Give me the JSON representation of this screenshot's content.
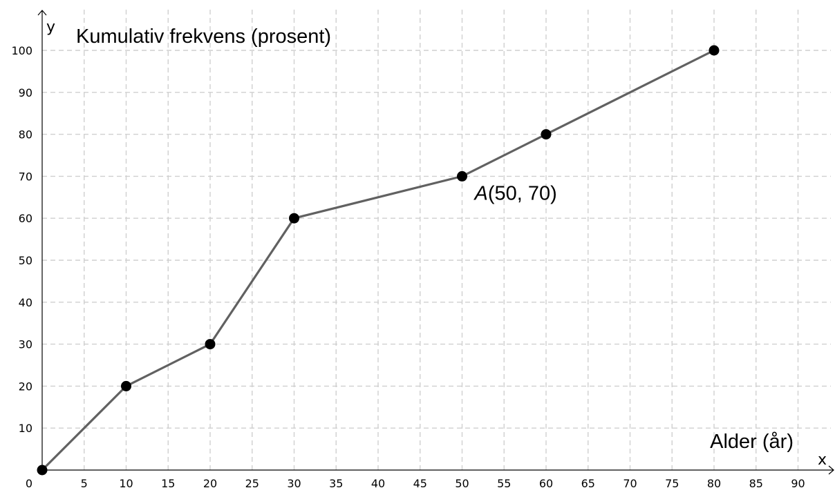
{
  "chart_data": {
    "type": "line",
    "ylabel": "Kumulativ frekvens (prosent)",
    "xlabel": "Alder (år)",
    "x_axis_name": "x",
    "y_axis_name": "y",
    "origin_label": "0",
    "xlim": [
      0,
      95
    ],
    "ylim": [
      0,
      105
    ],
    "x_ticks": [
      5,
      10,
      15,
      20,
      25,
      30,
      35,
      40,
      45,
      50,
      55,
      60,
      65,
      70,
      75,
      80,
      85,
      90
    ],
    "y_ticks": [
      10,
      20,
      30,
      40,
      50,
      60,
      70,
      80,
      90,
      100
    ],
    "grid": true,
    "series": [
      {
        "x": [
          0,
          10,
          20,
          30,
          50,
          60,
          80
        ],
        "y": [
          0,
          20,
          30,
          60,
          70,
          80,
          100
        ],
        "color": "#616161",
        "marker_color": "#000000"
      }
    ],
    "annotations": [
      {
        "name": "A",
        "text": "(50, 70)",
        "x": 50,
        "y": 70
      }
    ]
  }
}
